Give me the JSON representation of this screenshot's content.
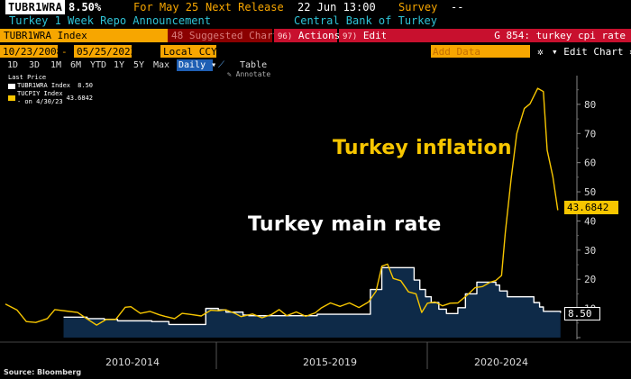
{
  "header": {
    "ticker": "TUBR1WRA",
    "price": "8.50%",
    "for_label": "For May 25",
    "next_release_label": "Next Release",
    "next_release_value": "22 Jun 13:00",
    "survey_label": "Survey",
    "survey_value": "--",
    "description": "Turkey 1 Week Repo Announcement",
    "source": "Central Bank of Turkey"
  },
  "toolbar": {
    "index_name": "TUBR1WRA Index",
    "suggested_charts": "48 Suggested Charts",
    "actions_num": "96)",
    "actions_label": "Actions",
    "edit_num": "97)",
    "edit_label": "Edit",
    "chart_title": "G 854: turkey cpi rate",
    "start_date": "10/23/2008",
    "end_date": "05/25/2023",
    "currency": "Local CCY",
    "add_data": "Add Data",
    "edit_chart": "Edit Chart",
    "ranges": [
      "1D",
      "3D",
      "1M",
      "6M",
      "YTD",
      "1Y",
      "5Y",
      "Max"
    ],
    "frequency": "Daily",
    "table_label": "Table",
    "annotate_label": "Annotate",
    "gear_icon": "gear-icon",
    "line_icon": "line-chart-icon"
  },
  "legend": {
    "header": "Last Price",
    "items": [
      {
        "label": "TUBR1WRA Index",
        "value": "8.50",
        "color": "#ffffff"
      },
      {
        "label": "TUCPIY Index - on 4/30/23",
        "value": "43.6842",
        "color": "#f7c600"
      }
    ]
  },
  "annotations": {
    "inflation": "Turkey inflation",
    "main_rate": "Turkey main rate"
  },
  "last_value_tags": {
    "inflation": "43.6842",
    "rate": "8.50"
  },
  "source_note": "Source: Bloomberg",
  "chart_data": {
    "type": "line",
    "x_period_labels": [
      "2010-2014",
      "2015-2019",
      "2020-2024"
    ],
    "xlim": [
      2008.8,
      2023.5
    ],
    "ylim": [
      0,
      88
    ],
    "y_ticks": [
      10,
      20,
      30,
      40,
      50,
      60,
      70,
      80
    ],
    "grid": false,
    "legend_position": "top-left",
    "series": [
      {
        "name": "TUBR1WRA Index",
        "color": "#ffffff",
        "area_fill": "#0e2a48",
        "step": true,
        "points": [
          [
            2010.33,
            7.0
          ],
          [
            2010.95,
            6.5
          ],
          [
            2011.4,
            6.25
          ],
          [
            2011.75,
            5.75
          ],
          [
            2012.65,
            5.5
          ],
          [
            2013.1,
            4.5
          ],
          [
            2013.5,
            4.5
          ],
          [
            2014.07,
            10.0
          ],
          [
            2014.4,
            9.5
          ],
          [
            2014.6,
            8.75
          ],
          [
            2015.05,
            7.75
          ],
          [
            2015.2,
            7.5
          ],
          [
            2016.2,
            7.5
          ],
          [
            2016.6,
            7.5
          ],
          [
            2017.0,
            8.0
          ],
          [
            2017.3,
            8.0
          ],
          [
            2018.3,
            8.0
          ],
          [
            2018.4,
            16.5
          ],
          [
            2018.7,
            24.0
          ],
          [
            2019.4,
            24.0
          ],
          [
            2019.55,
            19.75
          ],
          [
            2019.7,
            16.5
          ],
          [
            2019.85,
            14.0
          ],
          [
            2020.0,
            12.0
          ],
          [
            2020.2,
            9.75
          ],
          [
            2020.4,
            8.25
          ],
          [
            2020.7,
            10.25
          ],
          [
            2020.9,
            15.0
          ],
          [
            2021.2,
            19.0
          ],
          [
            2021.7,
            18.0
          ],
          [
            2021.8,
            16.0
          ],
          [
            2022.0,
            14.0
          ],
          [
            2022.6,
            14.0
          ],
          [
            2022.7,
            12.0
          ],
          [
            2022.85,
            10.5
          ],
          [
            2022.95,
            9.0
          ],
          [
            2023.4,
            8.5
          ]
        ]
      },
      {
        "name": "TUCPIY Index",
        "color": "#f7c600",
        "step": false,
        "points": [
          [
            2008.8,
            11.5
          ],
          [
            2009.1,
            9.5
          ],
          [
            2009.35,
            5.5
          ],
          [
            2009.6,
            5.2
          ],
          [
            2009.9,
            6.5
          ],
          [
            2010.1,
            9.6
          ],
          [
            2010.4,
            9.1
          ],
          [
            2010.7,
            8.6
          ],
          [
            2010.95,
            6.4
          ],
          [
            2011.2,
            4.3
          ],
          [
            2011.45,
            6.2
          ],
          [
            2011.7,
            6.2
          ],
          [
            2011.95,
            10.4
          ],
          [
            2012.1,
            10.6
          ],
          [
            2012.35,
            8.3
          ],
          [
            2012.6,
            9.0
          ],
          [
            2012.85,
            7.8
          ],
          [
            2013.0,
            7.3
          ],
          [
            2013.25,
            6.5
          ],
          [
            2013.45,
            8.3
          ],
          [
            2013.7,
            7.9
          ],
          [
            2013.95,
            7.4
          ],
          [
            2014.2,
            9.4
          ],
          [
            2014.4,
            9.2
          ],
          [
            2014.6,
            9.5
          ],
          [
            2014.85,
            8.2
          ],
          [
            2015.0,
            7.2
          ],
          [
            2015.3,
            8.1
          ],
          [
            2015.55,
            6.8
          ],
          [
            2015.8,
            7.9
          ],
          [
            2016.0,
            9.6
          ],
          [
            2016.2,
            7.5
          ],
          [
            2016.45,
            8.8
          ],
          [
            2016.7,
            7.3
          ],
          [
            2016.95,
            8.5
          ],
          [
            2017.1,
            10.1
          ],
          [
            2017.35,
            11.9
          ],
          [
            2017.6,
            10.7
          ],
          [
            2017.85,
            11.9
          ],
          [
            2018.1,
            10.3
          ],
          [
            2018.35,
            12.2
          ],
          [
            2018.55,
            15.9
          ],
          [
            2018.7,
            24.5
          ],
          [
            2018.85,
            25.2
          ],
          [
            2019.0,
            20.3
          ],
          [
            2019.2,
            19.5
          ],
          [
            2019.4,
            15.7
          ],
          [
            2019.6,
            15.0
          ],
          [
            2019.75,
            8.6
          ],
          [
            2019.9,
            11.8
          ],
          [
            2020.1,
            12.2
          ],
          [
            2020.3,
            10.9
          ],
          [
            2020.5,
            11.8
          ],
          [
            2020.7,
            11.9
          ],
          [
            2020.95,
            14.6
          ],
          [
            2021.15,
            17.1
          ],
          [
            2021.35,
            17.5
          ],
          [
            2021.55,
            19.0
          ],
          [
            2021.7,
            19.6
          ],
          [
            2021.85,
            21.3
          ],
          [
            2021.95,
            36.1
          ],
          [
            2022.1,
            54.4
          ],
          [
            2022.25,
            70.0
          ],
          [
            2022.45,
            78.6
          ],
          [
            2022.6,
            80.2
          ],
          [
            2022.8,
            85.5
          ],
          [
            2022.95,
            84.4
          ],
          [
            2023.05,
            64.3
          ],
          [
            2023.2,
            55.2
          ],
          [
            2023.33,
            43.7
          ]
        ]
      }
    ]
  }
}
